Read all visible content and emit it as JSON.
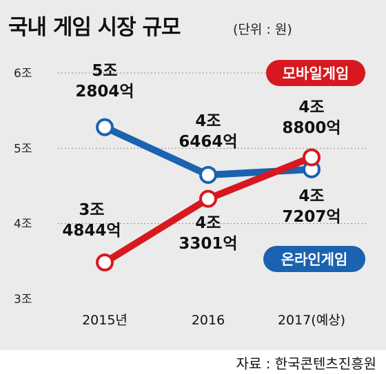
{
  "title": "국내 게임 시장 규모",
  "unit_label": "(단위 : 원)",
  "source": "자료 : 한국콘텐츠진흥원",
  "colors": {
    "mobile": "#d7191f",
    "online": "#1b62b0",
    "background": "#ebebeb"
  },
  "chart_data": {
    "type": "line",
    "title": "국내 게임 시장 규모",
    "unit": "(단위 : 원)",
    "categories": [
      "2015년",
      "2016",
      "2017(예상)"
    ],
    "y_tick_labels": [
      "3조",
      "4조",
      "5조",
      "6조"
    ],
    "y_unit": "조 원",
    "ylim": [
      3,
      6
    ],
    "grid": "dashed horizontal",
    "series": [
      {
        "name": "모바일게임",
        "color": "#d7191f",
        "values": [
          3.4844,
          4.3301,
          4.88
        ],
        "labels": [
          [
            "3조",
            "4844억"
          ],
          [
            "4조",
            "3301억"
          ],
          [
            "4조",
            "8800억"
          ]
        ]
      },
      {
        "name": "온라인게임",
        "color": "#1b62b0",
        "values": [
          5.2804,
          4.6464,
          4.7207
        ],
        "labels": [
          [
            "5조",
            "2804억"
          ],
          [
            "4조",
            "6464억"
          ],
          [
            "4조",
            "7207억"
          ]
        ]
      }
    ]
  }
}
